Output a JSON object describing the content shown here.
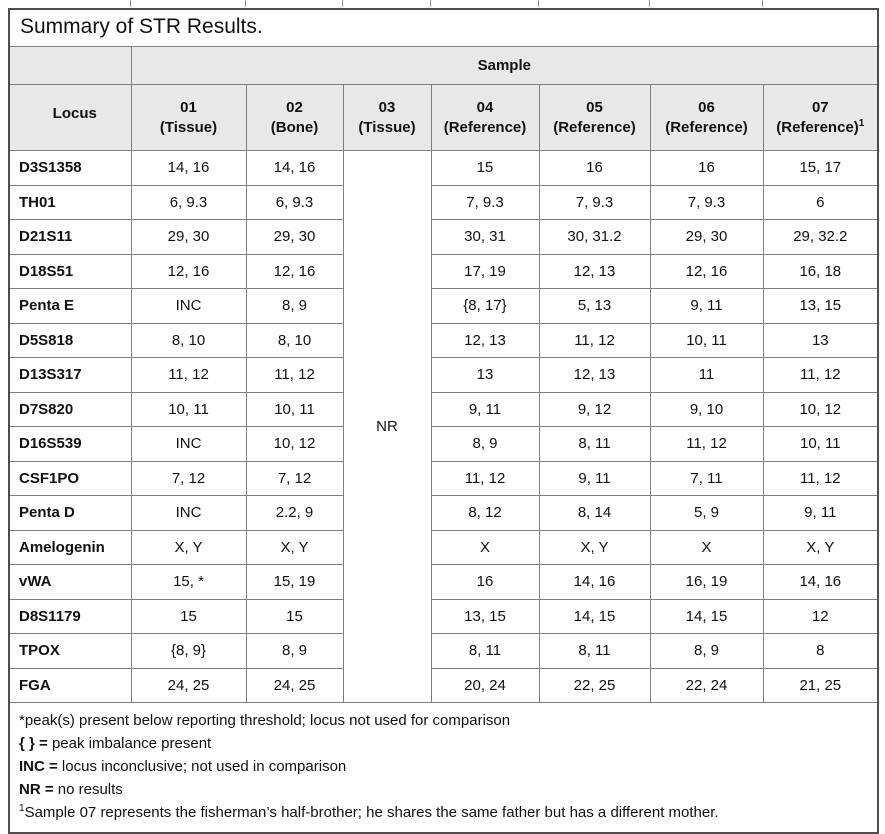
{
  "title": "Summary of STR Results.",
  "table": {
    "sample_header": "Sample",
    "locus_header": "Locus",
    "columns": [
      {
        "label": "01",
        "sub": "(Tissue)"
      },
      {
        "label": "02",
        "sub": "(Bone)"
      },
      {
        "label": "03",
        "sub": "(Tissue)"
      },
      {
        "label": "04",
        "sub": "(Reference)"
      },
      {
        "label": "05",
        "sub": "(Reference)"
      },
      {
        "label": "06",
        "sub": "(Reference)"
      },
      {
        "label": "07",
        "sub": "(Reference)",
        "sup": "1"
      }
    ],
    "nr_value": "NR",
    "rows": [
      {
        "locus": "D3S1358",
        "s01": "14, 16",
        "s02": "14, 16",
        "s04": "15",
        "s05": "16",
        "s06": "16",
        "s07": "15, 17"
      },
      {
        "locus": "TH01",
        "s01": "6, 9.3",
        "s02": "6, 9.3",
        "s04": "7, 9.3",
        "s05": "7, 9.3",
        "s06": "7, 9.3",
        "s07": "6"
      },
      {
        "locus": "D21S11",
        "s01": "29, 30",
        "s02": "29, 30",
        "s04": "30, 31",
        "s05": "30, 31.2",
        "s06": "29, 30",
        "s07": "29, 32.2"
      },
      {
        "locus": "D18S51",
        "s01": "12, 16",
        "s02": "12, 16",
        "s04": "17, 19",
        "s05": "12, 13",
        "s06": "12, 16",
        "s07": "16, 18"
      },
      {
        "locus": "Penta E",
        "s01": "INC",
        "s02": "8, 9",
        "s04": "{8, 17}",
        "s05": "5, 13",
        "s06": "9, 11",
        "s07": "13, 15"
      },
      {
        "locus": "D5S818",
        "s01": "8, 10",
        "s02": "8, 10",
        "s04": "12, 13",
        "s05": "11, 12",
        "s06": "10, 11",
        "s07": "13"
      },
      {
        "locus": "D13S317",
        "s01": "11, 12",
        "s02": "11, 12",
        "s04": "13",
        "s05": "12, 13",
        "s06": "11",
        "s07": "11, 12"
      },
      {
        "locus": "D7S820",
        "s01": "10, 11",
        "s02": "10, 11",
        "s04": "9, 11",
        "s05": "9, 12",
        "s06": "9, 10",
        "s07": "10, 12"
      },
      {
        "locus": "D16S539",
        "s01": "INC",
        "s02": "10, 12",
        "s04": "8, 9",
        "s05": "8, 11",
        "s06": "11, 12",
        "s07": "10, 11"
      },
      {
        "locus": "CSF1PO",
        "s01": "7, 12",
        "s02": "7, 12",
        "s04": "11, 12",
        "s05": "9, 11",
        "s06": "7, 11",
        "s07": "11, 12"
      },
      {
        "locus": "Penta D",
        "s01": "INC",
        "s02": "2.2, 9",
        "s04": "8, 12",
        "s05": "8, 14",
        "s06": "5, 9",
        "s07": "9, 11"
      },
      {
        "locus": "Amelogenin",
        "s01": "X, Y",
        "s02": "X, Y",
        "s04": "X",
        "s05": "X, Y",
        "s06": "X",
        "s07": "X, Y"
      },
      {
        "locus": "vWA",
        "s01": "15, *",
        "s02": "15, 19",
        "s04": "16",
        "s05": "14, 16",
        "s06": "16, 19",
        "s07": "14, 16"
      },
      {
        "locus": "D8S1179",
        "s01": "15",
        "s02": "15",
        "s04": "13, 15",
        "s05": "14, 15",
        "s06": "14, 15",
        "s07": "12"
      },
      {
        "locus": "TPOX",
        "s01": "{8, 9}",
        "s02": "8, 9",
        "s04": "8, 11",
        "s05": "8, 11",
        "s06": "8, 9",
        "s07": "8"
      },
      {
        "locus": "FGA",
        "s01": "24, 25",
        "s02": "24, 25",
        "s04": "20, 24",
        "s05": "22, 25",
        "s06": "22, 24",
        "s07": "21, 25"
      }
    ]
  },
  "footnotes": [
    {
      "prefix": "",
      "text": "*peak(s) present below reporting threshold; locus not used for comparison"
    },
    {
      "prefix": "{ } =",
      "text": " peak imbalance present"
    },
    {
      "prefix": "INC =",
      "text": " locus inconclusive; not used in comparison"
    },
    {
      "prefix": "NR =",
      "text": " no results"
    },
    {
      "sup": "1",
      "text": "Sample 07 represents the fisherman’s half-brother; he shares the same father but has a different mother."
    }
  ]
}
